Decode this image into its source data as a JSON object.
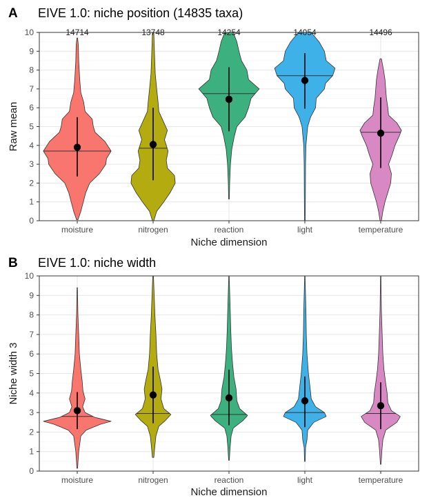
{
  "chart_data": [
    {
      "panel_label": "A",
      "type": "violin",
      "title": "EIVE 1.0: niche position (14835 taxa)",
      "xlabel": "Niche dimension",
      "ylabel": "Raw mean",
      "ylim": [
        0,
        10
      ],
      "yticks": [
        "0",
        "1",
        "2",
        "3",
        "4",
        "5",
        "6",
        "7",
        "8",
        "9",
        "10"
      ],
      "grid": true,
      "categories": [
        "moisture",
        "nitrogen",
        "reaction",
        "light",
        "temperature"
      ],
      "counts": [
        "14714",
        "13748",
        "14254",
        "14054",
        "14496"
      ],
      "colors": [
        "#F8766D",
        "#B3AB0F",
        "#3DB07F",
        "#3FB1E9",
        "#D889C3"
      ],
      "mean": [
        3.9,
        4.05,
        6.45,
        7.45,
        4.65
      ],
      "median": [
        3.7,
        3.85,
        6.75,
        7.7,
        4.7
      ],
      "sd_low": [
        2.35,
        2.15,
        4.75,
        5.95,
        2.8
      ],
      "sd_high": [
        5.5,
        6.0,
        8.15,
        8.9,
        6.55
      ],
      "y_min": [
        0.05,
        0.0,
        1.15,
        0.0,
        0.0
      ],
      "y_max": [
        9.7,
        10.0,
        10.0,
        10.0,
        8.6
      ],
      "density": [
        [
          [
            0.05,
            0.02
          ],
          [
            0.5,
            0.1
          ],
          [
            1,
            0.17
          ],
          [
            1.5,
            0.24
          ],
          [
            2,
            0.35
          ],
          [
            2.5,
            0.62
          ],
          [
            3,
            0.8
          ],
          [
            3.3,
            0.82
          ],
          [
            3.7,
            0.95
          ],
          [
            4.2,
            0.78
          ],
          [
            4.7,
            0.5
          ],
          [
            5,
            0.45
          ],
          [
            5.4,
            0.42
          ],
          [
            5.8,
            0.22
          ],
          [
            6.3,
            0.18
          ],
          [
            6.8,
            0.1
          ],
          [
            7.5,
            0.07
          ],
          [
            8.5,
            0.04
          ],
          [
            9.3,
            0.03
          ],
          [
            9.7,
            0.01
          ]
        ],
        [
          [
            0,
            0.02
          ],
          [
            0.5,
            0.1
          ],
          [
            1,
            0.3
          ],
          [
            1.5,
            0.48
          ],
          [
            2,
            0.62
          ],
          [
            2.4,
            0.6
          ],
          [
            2.8,
            0.4
          ],
          [
            3.2,
            0.37
          ],
          [
            3.7,
            0.42
          ],
          [
            4.3,
            0.32
          ],
          [
            4.8,
            0.4
          ],
          [
            5.3,
            0.28
          ],
          [
            5.8,
            0.16
          ],
          [
            6.3,
            0.14
          ],
          [
            7,
            0.1
          ],
          [
            7.8,
            0.06
          ],
          [
            8.8,
            0.04
          ],
          [
            10,
            0.02
          ]
        ],
        [
          [
            1.15,
            0.01
          ],
          [
            2,
            0.02
          ],
          [
            3,
            0.04
          ],
          [
            3.8,
            0.08
          ],
          [
            4.5,
            0.15
          ],
          [
            5,
            0.22
          ],
          [
            5.5,
            0.45
          ],
          [
            6,
            0.55
          ],
          [
            6.5,
            0.62
          ],
          [
            7,
            0.85
          ],
          [
            7.5,
            0.55
          ],
          [
            8,
            0.5
          ],
          [
            8.5,
            0.35
          ],
          [
            9,
            0.28
          ],
          [
            9.5,
            0.22
          ],
          [
            10,
            0.12
          ]
        ],
        [
          [
            0,
            0.01
          ],
          [
            1.5,
            0.015
          ],
          [
            3,
            0.02
          ],
          [
            4,
            0.03
          ],
          [
            5,
            0.08
          ],
          [
            5.5,
            0.16
          ],
          [
            6,
            0.3
          ],
          [
            6.5,
            0.32
          ],
          [
            7,
            0.55
          ],
          [
            7.3,
            0.58
          ],
          [
            7.7,
            0.78
          ],
          [
            8.1,
            0.85
          ],
          [
            8.5,
            0.6
          ],
          [
            9,
            0.55
          ],
          [
            9.5,
            0.4
          ],
          [
            10,
            0.18
          ]
        ],
        [
          [
            0,
            0.02
          ],
          [
            0.5,
            0.06
          ],
          [
            1,
            0.12
          ],
          [
            1.5,
            0.2
          ],
          [
            2,
            0.28
          ],
          [
            2.5,
            0.3
          ],
          [
            3,
            0.22
          ],
          [
            3.5,
            0.32
          ],
          [
            4,
            0.4
          ],
          [
            4.5,
            0.52
          ],
          [
            4.8,
            0.58
          ],
          [
            5.2,
            0.45
          ],
          [
            5.6,
            0.22
          ],
          [
            6,
            0.2
          ],
          [
            6.5,
            0.16
          ],
          [
            7,
            0.14
          ],
          [
            7.5,
            0.12
          ],
          [
            8,
            0.08
          ],
          [
            8.6,
            0.02
          ]
        ]
      ]
    },
    {
      "panel_label": "B",
      "type": "violin",
      "title": "EIVE 1.0: niche width",
      "xlabel": "Niche dimension",
      "ylabel": "Niche width 3",
      "ylim": [
        0,
        10
      ],
      "yticks": [
        "0",
        "1",
        "2",
        "3",
        "4",
        "5",
        "6",
        "7",
        "8",
        "9",
        "10"
      ],
      "grid": true,
      "categories": [
        "moisture",
        "nitrogen",
        "reaction",
        "light",
        "temperature"
      ],
      "colors": [
        "#F8766D",
        "#B3AB0F",
        "#3DB07F",
        "#3FB1E9",
        "#D889C3"
      ],
      "mean": [
        3.1,
        3.9,
        3.75,
        3.6,
        3.35
      ],
      "median": [
        2.8,
        2.95,
        2.9,
        3.0,
        2.95
      ],
      "sd_low": [
        2.15,
        2.45,
        2.35,
        2.25,
        2.15
      ],
      "sd_high": [
        4.05,
        5.35,
        5.2,
        4.85,
        4.55
      ],
      "y_min": [
        0.15,
        0.7,
        0.55,
        0.5,
        0.35
      ],
      "y_max": [
        9.4,
        10.0,
        10.0,
        10.0,
        10.0
      ],
      "density": [
        [
          [
            0.15,
            0.01
          ],
          [
            1,
            0.04
          ],
          [
            1.8,
            0.1
          ],
          [
            2.1,
            0.25
          ],
          [
            2.4,
            0.65
          ],
          [
            2.55,
            0.95
          ],
          [
            2.75,
            0.5
          ],
          [
            3.0,
            0.22
          ],
          [
            3.3,
            0.15
          ],
          [
            3.7,
            0.22
          ],
          [
            4.1,
            0.16
          ],
          [
            4.6,
            0.14
          ],
          [
            5.2,
            0.1
          ],
          [
            6,
            0.06
          ],
          [
            7,
            0.04
          ],
          [
            8,
            0.02
          ],
          [
            9.4,
            0.005
          ]
        ],
        [
          [
            0.7,
            0.02
          ],
          [
            1.3,
            0.05
          ],
          [
            1.8,
            0.08
          ],
          [
            2.3,
            0.16
          ],
          [
            2.6,
            0.35
          ],
          [
            2.9,
            0.5
          ],
          [
            3.2,
            0.3
          ],
          [
            3.7,
            0.22
          ],
          [
            4.2,
            0.25
          ],
          [
            4.7,
            0.2
          ],
          [
            5.2,
            0.14
          ],
          [
            6,
            0.1
          ],
          [
            7,
            0.08
          ],
          [
            8,
            0.05
          ],
          [
            9,
            0.03
          ],
          [
            10,
            0.01
          ]
        ],
        [
          [
            0.55,
            0.01
          ],
          [
            1.2,
            0.03
          ],
          [
            1.8,
            0.06
          ],
          [
            2.2,
            0.12
          ],
          [
            2.6,
            0.4
          ],
          [
            2.85,
            0.52
          ],
          [
            3.2,
            0.3
          ],
          [
            3.6,
            0.22
          ],
          [
            4.2,
            0.2
          ],
          [
            4.8,
            0.14
          ],
          [
            5.5,
            0.1
          ],
          [
            6.3,
            0.07
          ],
          [
            7.2,
            0.05
          ],
          [
            8.5,
            0.03
          ],
          [
            10,
            0.005
          ]
        ],
        [
          [
            0.5,
            0.01
          ],
          [
            1.2,
            0.02
          ],
          [
            1.6,
            0.06
          ],
          [
            2.1,
            0.08
          ],
          [
            2.5,
            0.25
          ],
          [
            2.8,
            0.6
          ],
          [
            3.0,
            0.55
          ],
          [
            3.3,
            0.3
          ],
          [
            3.7,
            0.18
          ],
          [
            4.2,
            0.15
          ],
          [
            5,
            0.1
          ],
          [
            6,
            0.06
          ],
          [
            7,
            0.04
          ],
          [
            8.2,
            0.03
          ],
          [
            10,
            0.005
          ]
        ],
        [
          [
            0.35,
            0.01
          ],
          [
            1,
            0.03
          ],
          [
            1.6,
            0.06
          ],
          [
            2.1,
            0.14
          ],
          [
            2.5,
            0.45
          ],
          [
            2.8,
            0.55
          ],
          [
            3.1,
            0.3
          ],
          [
            3.5,
            0.2
          ],
          [
            4,
            0.18
          ],
          [
            4.5,
            0.14
          ],
          [
            5.2,
            0.09
          ],
          [
            6,
            0.06
          ],
          [
            7,
            0.04
          ],
          [
            8.2,
            0.02
          ],
          [
            10,
            0.005
          ]
        ]
      ]
    }
  ]
}
